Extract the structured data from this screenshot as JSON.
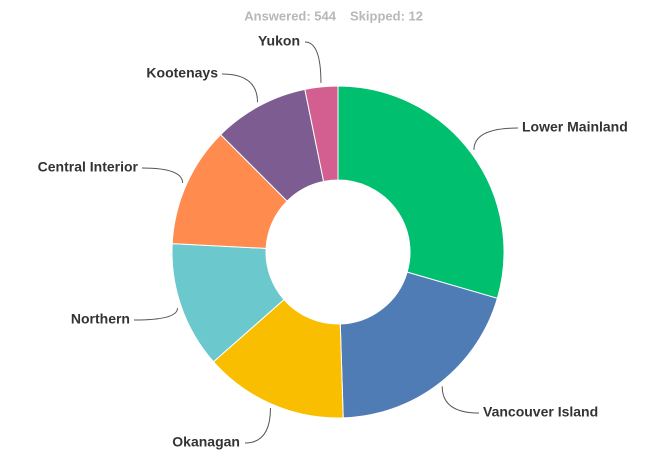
{
  "chart_data": {
    "type": "donut",
    "answered": "Answered: 544",
    "skipped": "Skipped: 12",
    "categories": [
      "Lower Mainland",
      "Vancouver Island",
      "Okanagan",
      "Northern",
      "Central Interior",
      "Kootenays",
      "Yukon"
    ],
    "values": [
      29.5,
      20,
      14,
      12.3,
      11.7,
      9.3,
      3.2
    ],
    "colors": [
      "#00bf6f",
      "#507cb6",
      "#f9be00",
      "#6bc8cd",
      "#ff8b4f",
      "#7d5c91",
      "#d25f90"
    ]
  }
}
